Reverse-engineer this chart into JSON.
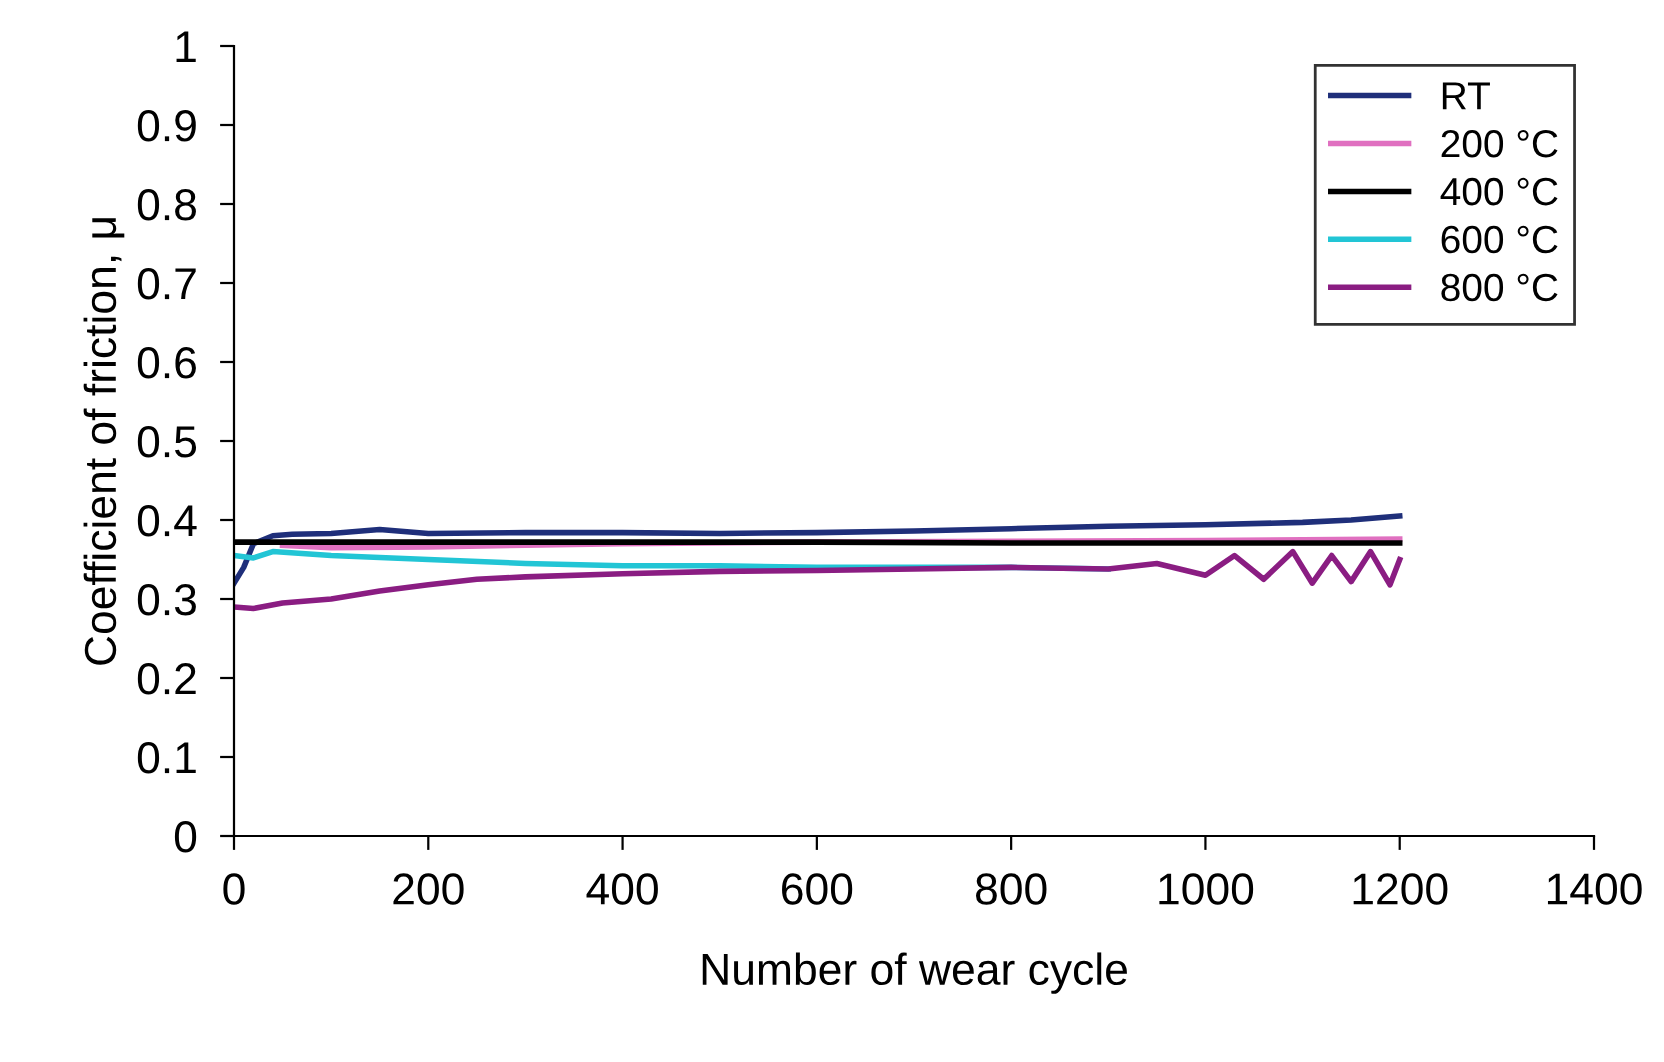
{
  "chart_data": {
    "type": "line",
    "xlabel": "Number of wear cycle",
    "ylabel": "Coefficient of friction, μ",
    "xlim": [
      0,
      1400
    ],
    "ylim": [
      0,
      1
    ],
    "xticks": [
      0,
      200,
      400,
      600,
      800,
      1000,
      1200,
      1400
    ],
    "yticks": [
      0,
      0.1,
      0.2,
      0.3,
      0.4,
      0.5,
      0.6,
      0.7,
      0.8,
      0.9,
      1
    ],
    "grid": false,
    "legend": "top right",
    "marker": "none",
    "line_style": "solid",
    "series": [
      {
        "name": "RT",
        "color": "#1f2f7a",
        "x": [
          0,
          10,
          20,
          40,
          60,
          100,
          150,
          200,
          300,
          400,
          500,
          600,
          700,
          800,
          900,
          1000,
          1100,
          1150,
          1200
        ],
        "values": [
          0.32,
          0.34,
          0.37,
          0.38,
          0.382,
          0.383,
          0.388,
          0.383,
          0.384,
          0.384,
          0.383,
          0.384,
          0.386,
          0.389,
          0.392,
          0.394,
          0.397,
          0.4,
          0.405
        ]
      },
      {
        "name": "200 °C",
        "color": "#e070c0",
        "x": [
          50,
          100,
          200,
          300,
          400,
          600,
          800,
          1000,
          1200
        ],
        "values": [
          0.368,
          0.365,
          0.366,
          0.368,
          0.37,
          0.372,
          0.373,
          0.374,
          0.376
        ]
      },
      {
        "name": "400 °C",
        "color": "#000000",
        "x": [
          0,
          100,
          200,
          400,
          600,
          800,
          1000,
          1200
        ],
        "values": [
          0.372,
          0.372,
          0.372,
          0.372,
          0.372,
          0.371,
          0.371,
          0.371
        ]
      },
      {
        "name": "600 °C",
        "color": "#22c5d5",
        "x": [
          0,
          20,
          40,
          100,
          200,
          300,
          400,
          500,
          600,
          700,
          800,
          900
        ],
        "values": [
          0.355,
          0.352,
          0.36,
          0.355,
          0.35,
          0.345,
          0.342,
          0.342,
          0.34,
          0.34,
          0.34,
          0.338
        ]
      },
      {
        "name": "800 °C",
        "color": "#8a1d82",
        "x": [
          0,
          20,
          50,
          100,
          150,
          200,
          250,
          300,
          400,
          500,
          600,
          700,
          800,
          900,
          950,
          1000,
          1030,
          1060,
          1090,
          1110,
          1130,
          1150,
          1170,
          1190,
          1200
        ],
        "values": [
          0.29,
          0.288,
          0.295,
          0.3,
          0.31,
          0.318,
          0.325,
          0.328,
          0.332,
          0.335,
          0.336,
          0.338,
          0.34,
          0.338,
          0.345,
          0.33,
          0.355,
          0.325,
          0.36,
          0.32,
          0.355,
          0.322,
          0.36,
          0.318,
          0.35
        ]
      }
    ]
  }
}
